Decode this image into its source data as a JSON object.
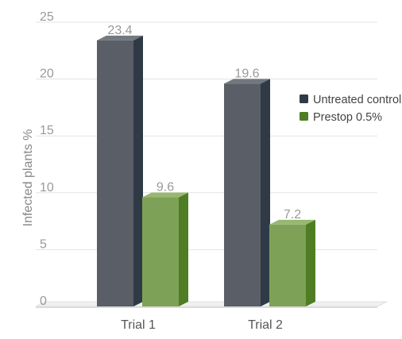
{
  "chart_data": {
    "type": "bar",
    "categories": [
      "Trial 1",
      "Trial 2"
    ],
    "series": [
      {
        "name": "Untreated control",
        "values": [
          23.4,
          19.6
        ],
        "data_labels": [
          "23.4",
          "19.6"
        ]
      },
      {
        "name": "Prestop 0.5%",
        "values": [
          9.6,
          7.2
        ],
        "data_labels": [
          "9.6",
          "7.2"
        ]
      }
    ],
    "ylabel": "Infected plants %",
    "xlabel": "",
    "ylim": [
      0,
      25
    ],
    "y_ticks": [
      0,
      5,
      10,
      15,
      20,
      25
    ],
    "y_tick_labels": [
      "0",
      "5",
      "10",
      "15",
      "20",
      "25"
    ],
    "grid": true,
    "legend_position": "right",
    "style": "3d-bars",
    "colors": {
      "Untreated control": {
        "front": "#5a5e66",
        "side": "#2f3a46",
        "top": "#737880"
      },
      "Prestop 0.5%": {
        "front": "#7da257",
        "side": "#4f7d24",
        "top": "#98b872"
      },
      "text": "#9a9a9a",
      "axis_label": "#888888",
      "grid": "#e3e3e3",
      "category_text": "#555555",
      "legend_text": "#444444"
    }
  }
}
